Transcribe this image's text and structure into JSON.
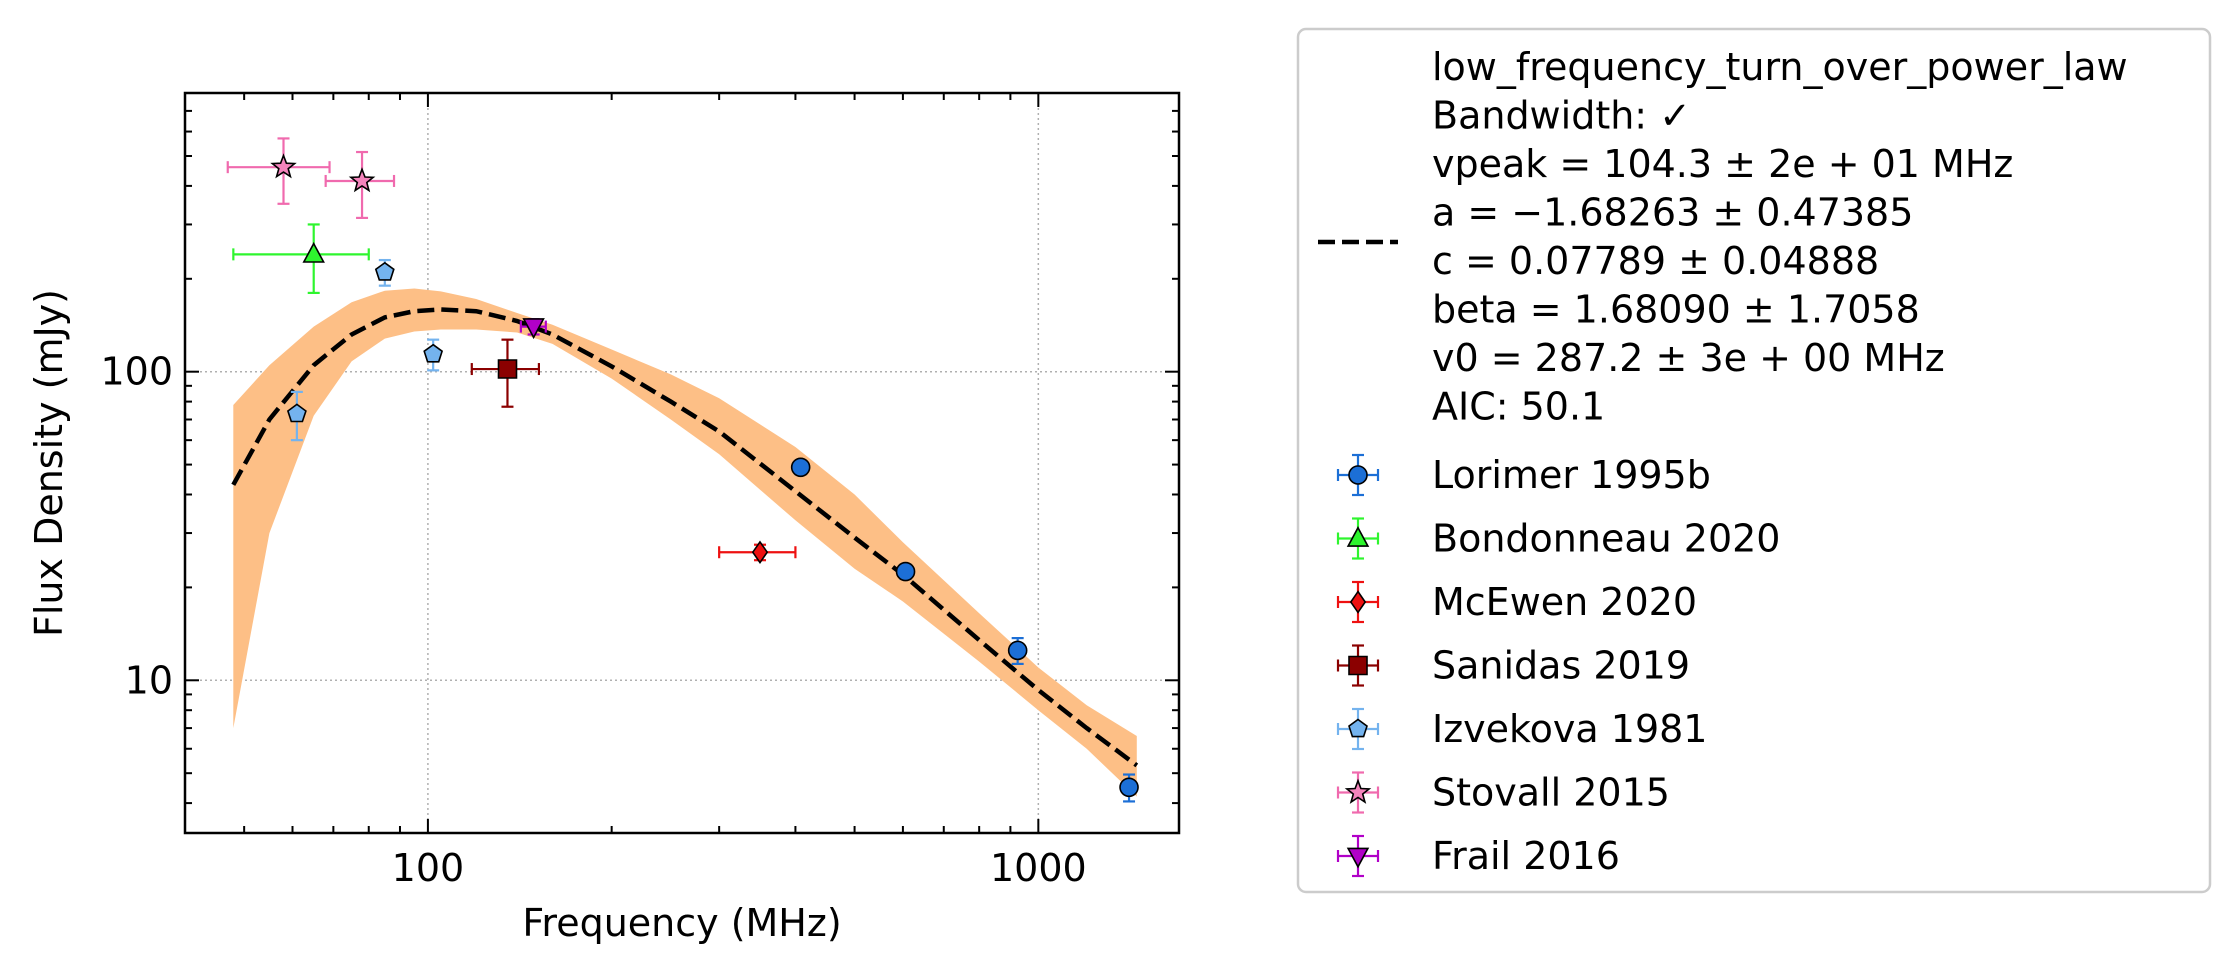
{
  "chart_data": {
    "type": "scatter",
    "title": "",
    "xlabel": "Frequency (MHz)",
    "ylabel": "Flux Density (mJy)",
    "xscale": "log",
    "yscale": "log",
    "xlim": [
      40,
      1700
    ],
    "ylim": [
      3.2,
      800
    ],
    "x_ticks": [
      100,
      1000
    ],
    "x_tick_labels": [
      "100",
      "1000"
    ],
    "y_ticks": [
      10,
      100
    ],
    "y_tick_labels": [
      "10",
      "100"
    ],
    "grid": true,
    "legend_placement": "outside-right",
    "model": {
      "name": "low_frequency_turn_over_power_law",
      "legend_lines": [
        "low_frequency_turn_over_power_law",
        "Bandwidth: ✓",
        "vpeak = 104.3 ± 2e + 01 MHz",
        "a = −1.68263 ± 0.47385",
        "c = 0.07789 ± 0.04888",
        "beta = 1.68090 ± 1.7058",
        "v0 = 287.2 ± 3e + 00 MHz",
        "AIC: 50.1"
      ],
      "line_style": "dashed",
      "line_color": "#000000",
      "band_color": "#fdbf86",
      "curve": [
        [
          48,
          43
        ],
        [
          55,
          70
        ],
        [
          65,
          105
        ],
        [
          75,
          132
        ],
        [
          85,
          150
        ],
        [
          95,
          157
        ],
        [
          105,
          159
        ],
        [
          120,
          157
        ],
        [
          140,
          146
        ],
        [
          160,
          132
        ],
        [
          200,
          104
        ],
        [
          250,
          80
        ],
        [
          300,
          64
        ],
        [
          400,
          41
        ],
        [
          500,
          29
        ],
        [
          600,
          22
        ],
        [
          800,
          13.5
        ],
        [
          1000,
          9.3
        ],
        [
          1200,
          7
        ],
        [
          1450,
          5.3
        ]
      ],
      "band_upper": [
        [
          48,
          78
        ],
        [
          55,
          105
        ],
        [
          65,
          140
        ],
        [
          75,
          168
        ],
        [
          85,
          183
        ],
        [
          95,
          186
        ],
        [
          105,
          182
        ],
        [
          120,
          172
        ],
        [
          140,
          155
        ],
        [
          160,
          142
        ],
        [
          200,
          118
        ],
        [
          250,
          98
        ],
        [
          300,
          82
        ],
        [
          400,
          57
        ],
        [
          500,
          40
        ],
        [
          600,
          28
        ],
        [
          800,
          16.5
        ],
        [
          1000,
          11
        ],
        [
          1200,
          8.3
        ],
        [
          1450,
          6.6
        ]
      ],
      "band_lower": [
        [
          48,
          7
        ],
        [
          55,
          30
        ],
        [
          65,
          72
        ],
        [
          75,
          108
        ],
        [
          85,
          128
        ],
        [
          95,
          135
        ],
        [
          105,
          137
        ],
        [
          120,
          137
        ],
        [
          140,
          134
        ],
        [
          160,
          123
        ],
        [
          200,
          95
        ],
        [
          250,
          70
        ],
        [
          300,
          54
        ],
        [
          400,
          33
        ],
        [
          500,
          23
        ],
        [
          600,
          18
        ],
        [
          800,
          11.5
        ],
        [
          1000,
          8
        ],
        [
          1200,
          6
        ],
        [
          1450,
          4.2
        ]
      ]
    },
    "series": [
      {
        "name": "Lorimer 1995b",
        "marker": "circle",
        "color": "#1c6fd6",
        "ecolor": "#1c6fd6",
        "points": [
          {
            "x": 408,
            "y": 49,
            "xerr": 0,
            "yerr": 2.5
          },
          {
            "x": 606,
            "y": 22.5,
            "xerr": 0,
            "yerr": 1.2
          },
          {
            "x": 925,
            "y": 12.5,
            "xerr": 0,
            "yerr": 1.2
          },
          {
            "x": 1408,
            "y": 4.5,
            "xerr": 0,
            "yerr": 0.45
          }
        ]
      },
      {
        "name": "Bondonneau 2020",
        "marker": "triangle",
        "color": "#2ef52e",
        "ecolor": "#2ef52e",
        "points": [
          {
            "x": 65,
            "y": 240,
            "xerr_low": 17,
            "xerr_high": 15,
            "yerr": 60
          }
        ]
      },
      {
        "name": "McEwen 2020",
        "marker": "diamond",
        "color": "#ee1111",
        "ecolor": "#ee1111",
        "points": [
          {
            "x": 350,
            "y": 26,
            "xerr": 50,
            "yerr": 1.5
          }
        ]
      },
      {
        "name": "Sanidas 2019",
        "marker": "square",
        "color": "#8b0000",
        "ecolor": "#8b0000",
        "points": [
          {
            "x": 135,
            "y": 102,
            "xerr": 17,
            "yerr": 25
          }
        ]
      },
      {
        "name": "Izvekova 1981",
        "marker": "pentagon",
        "color": "#74b3ee",
        "ecolor": "#74b3ee",
        "points": [
          {
            "x": 61,
            "y": 73,
            "xerr": 0,
            "yerr": 13
          },
          {
            "x": 85,
            "y": 210,
            "xerr": 0,
            "yerr": 20
          },
          {
            "x": 102,
            "y": 114,
            "xerr": 0,
            "yerr": 13
          }
        ]
      },
      {
        "name": "Stovall 2015",
        "marker": "star",
        "color": "#f484bc",
        "ecolor": "#f06aae",
        "points": [
          {
            "x": 58,
            "y": 460,
            "xerr": 11,
            "yerr": 110
          },
          {
            "x": 78,
            "y": 415,
            "xerr": 10,
            "yerr": 100
          }
        ]
      },
      {
        "name": "Frail 2016",
        "marker": "triangle-down",
        "color": "#b100c8",
        "ecolor": "#b100c8",
        "points": [
          {
            "x": 149,
            "y": 140,
            "xerr": 7,
            "yerr": 8
          }
        ]
      }
    ]
  }
}
